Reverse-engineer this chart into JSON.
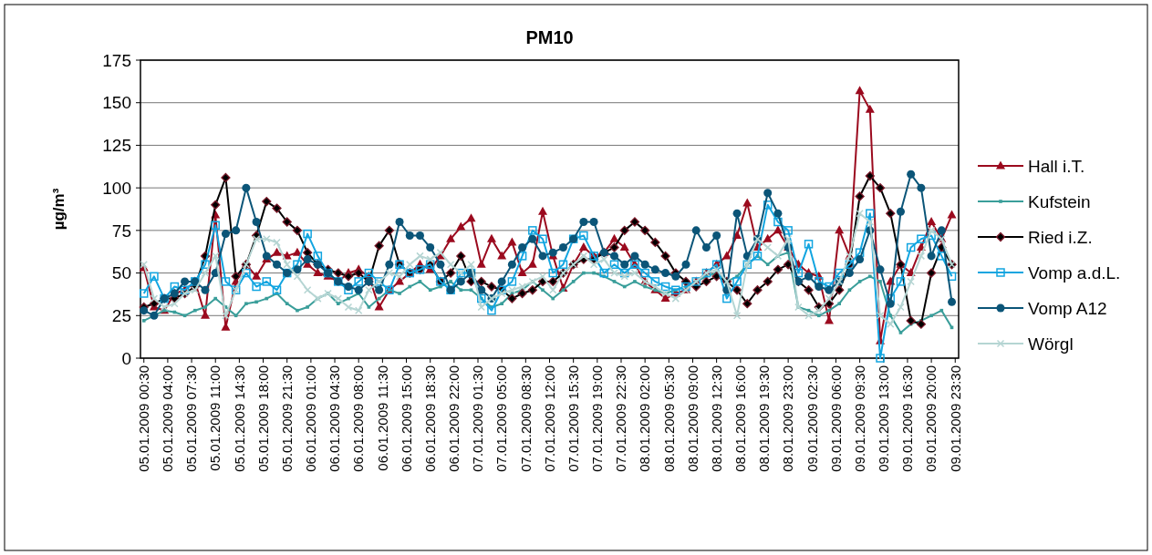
{
  "chart_data": {
    "type": "line",
    "title": "PM10",
    "ylabel": "µg/m³",
    "legend": "right",
    "grid": "y",
    "ylim": [
      0,
      175
    ],
    "yticks": [
      0,
      25,
      50,
      75,
      100,
      125,
      150,
      175
    ],
    "xlim": [
      "2009-01-05T00:00",
      "2009-01-10T00:00"
    ],
    "xticks": [
      {
        "value": "2009-01-05T00:30",
        "label": "05.01.2009 00:30"
      },
      {
        "value": "2009-01-05T04:00",
        "label": "05.01.2009 04:00"
      },
      {
        "value": "2009-01-05T07:30",
        "label": "05.01.2009 07:30"
      },
      {
        "value": "2009-01-05T11:00",
        "label": "05.01.2009 11:00"
      },
      {
        "value": "2009-01-05T14:30",
        "label": "05.01.2009 14:30"
      },
      {
        "value": "2009-01-05T18:00",
        "label": "05.01.2009 18:00"
      },
      {
        "value": "2009-01-05T21:30",
        "label": "05.01.2009 21:30"
      },
      {
        "value": "2009-01-06T01:00",
        "label": "06.01.2009 01:00"
      },
      {
        "value": "2009-01-06T04:30",
        "label": "06.01.2009 04:30"
      },
      {
        "value": "2009-01-06T08:00",
        "label": "06.01.2009 08:00"
      },
      {
        "value": "2009-01-06T11:30",
        "label": "06.01.2009 11:30"
      },
      {
        "value": "2009-01-06T15:00",
        "label": "06.01.2009 15:00"
      },
      {
        "value": "2009-01-06T18:30",
        "label": "06.01.2009 18:30"
      },
      {
        "value": "2009-01-06T22:00",
        "label": "06.01.2009 22:00"
      },
      {
        "value": "2009-01-07T01:30",
        "label": "07.01.2009 01:30"
      },
      {
        "value": "2009-01-07T05:00",
        "label": "07.01.2009 05:00"
      },
      {
        "value": "2009-01-07T08:30",
        "label": "07.01.2009 08:30"
      },
      {
        "value": "2009-01-07T12:00",
        "label": "07.01.2009 12:00"
      },
      {
        "value": "2009-01-07T15:30",
        "label": "07.01.2009 15:30"
      },
      {
        "value": "2009-01-07T19:00",
        "label": "07.01.2009 19:00"
      },
      {
        "value": "2009-01-07T22:30",
        "label": "07.01.2009 22:30"
      },
      {
        "value": "2009-01-08T02:00",
        "label": "08.01.2009 02:00"
      },
      {
        "value": "2009-01-08T05:30",
        "label": "08.01.2009 05:30"
      },
      {
        "value": "2009-01-08T09:00",
        "label": "08.01.2009 09:00"
      },
      {
        "value": "2009-01-08T12:30",
        "label": "08.01.2009 12:30"
      },
      {
        "value": "2009-01-08T16:00",
        "label": "08.01.2009 16:00"
      },
      {
        "value": "2009-01-08T19:30",
        "label": "08.01.2009 19:30"
      },
      {
        "value": "2009-01-08T23:00",
        "label": "08.01.2009 23:00"
      },
      {
        "value": "2009-01-09T02:30",
        "label": "09.01.2009 02:30"
      },
      {
        "value": "2009-01-09T06:00",
        "label": "09.01.2009 06:00"
      },
      {
        "value": "2009-01-09T09:30",
        "label": "09.01.2009 09:30"
      },
      {
        "value": "2009-01-09T13:00",
        "label": "09.01.2009 13:00"
      },
      {
        "value": "2009-01-09T16:30",
        "label": "09.01.2009 16:30"
      },
      {
        "value": "2009-01-09T20:00",
        "label": "09.01.2009 20:00"
      },
      {
        "value": "2009-01-09T23:30",
        "label": "09.01.2009 23:30"
      }
    ],
    "x": [
      "2009-01-05T00:30",
      "2009-01-05T02:00",
      "2009-01-05T03:30",
      "2009-01-05T05:00",
      "2009-01-05T06:30",
      "2009-01-05T08:00",
      "2009-01-05T09:30",
      "2009-01-05T11:00",
      "2009-01-05T12:30",
      "2009-01-05T14:00",
      "2009-01-05T15:30",
      "2009-01-05T17:00",
      "2009-01-05T18:30",
      "2009-01-05T20:00",
      "2009-01-05T21:30",
      "2009-01-05T23:00",
      "2009-01-06T00:30",
      "2009-01-06T02:00",
      "2009-01-06T03:30",
      "2009-01-06T05:00",
      "2009-01-06T06:30",
      "2009-01-06T08:00",
      "2009-01-06T09:30",
      "2009-01-06T11:00",
      "2009-01-06T12:30",
      "2009-01-06T14:00",
      "2009-01-06T15:30",
      "2009-01-06T17:00",
      "2009-01-06T18:30",
      "2009-01-06T20:00",
      "2009-01-06T21:30",
      "2009-01-06T23:00",
      "2009-01-07T00:30",
      "2009-01-07T02:00",
      "2009-01-07T03:30",
      "2009-01-07T05:00",
      "2009-01-07T06:30",
      "2009-01-07T08:00",
      "2009-01-07T09:30",
      "2009-01-07T11:00",
      "2009-01-07T12:30",
      "2009-01-07T14:00",
      "2009-01-07T15:30",
      "2009-01-07T17:00",
      "2009-01-07T18:30",
      "2009-01-07T20:00",
      "2009-01-07T21:30",
      "2009-01-07T23:00",
      "2009-01-08T00:30",
      "2009-01-08T02:00",
      "2009-01-08T03:30",
      "2009-01-08T05:00",
      "2009-01-08T06:30",
      "2009-01-08T08:00",
      "2009-01-08T09:30",
      "2009-01-08T11:00",
      "2009-01-08T12:30",
      "2009-01-08T14:00",
      "2009-01-08T15:30",
      "2009-01-08T17:00",
      "2009-01-08T18:30",
      "2009-01-08T20:00",
      "2009-01-08T21:30",
      "2009-01-08T23:00",
      "2009-01-09T00:30",
      "2009-01-09T02:00",
      "2009-01-09T03:30",
      "2009-01-09T05:00",
      "2009-01-09T06:30",
      "2009-01-09T08:00",
      "2009-01-09T09:30",
      "2009-01-09T11:00",
      "2009-01-09T12:30",
      "2009-01-09T14:00",
      "2009-01-09T15:30",
      "2009-01-09T17:00",
      "2009-01-09T18:30",
      "2009-01-09T20:00",
      "2009-01-09T21:30",
      "2009-01-09T23:00"
    ],
    "series": [
      {
        "name": "Hall i.T.",
        "color": "#9b0a1e",
        "marker": "triangle",
        "values": [
          53,
          30,
          28,
          38,
          40,
          45,
          25,
          84,
          18,
          45,
          55,
          48,
          58,
          62,
          60,
          62,
          55,
          50,
          48,
          45,
          50,
          52,
          48,
          30,
          40,
          45,
          50,
          55,
          52,
          60,
          70,
          77,
          82,
          55,
          70,
          60,
          68,
          50,
          55,
          86,
          60,
          41,
          55,
          65,
          60,
          62,
          70,
          65,
          55,
          45,
          40,
          35,
          38,
          40,
          45,
          50,
          55,
          60,
          72,
          91,
          65,
          70,
          75,
          65,
          55,
          50,
          48,
          22,
          75,
          60,
          157,
          146,
          10,
          45,
          55,
          50,
          65,
          80,
          70,
          84
        ]
      },
      {
        "name": "Kufstein",
        "color": "#3a9e9a",
        "marker": "square",
        "values": [
          22,
          25,
          28,
          27,
          25,
          28,
          30,
          35,
          30,
          25,
          32,
          33,
          35,
          38,
          32,
          28,
          30,
          35,
          38,
          32,
          35,
          38,
          30,
          35,
          40,
          38,
          42,
          45,
          40,
          42,
          45,
          40,
          40,
          35,
          30,
          32,
          38,
          40,
          45,
          40,
          35,
          40,
          45,
          50,
          50,
          48,
          45,
          42,
          45,
          42,
          40,
          38,
          40,
          42,
          45,
          48,
          50,
          45,
          48,
          55,
          60,
          55,
          60,
          62,
          30,
          28,
          25,
          28,
          32,
          40,
          45,
          48,
          45,
          25,
          15,
          20,
          22,
          25,
          28,
          18
        ]
      },
      {
        "name": "Ried i.Z.",
        "color": "#000000",
        "marker": "diamond",
        "values": [
          30,
          32,
          35,
          35,
          38,
          42,
          60,
          90,
          106,
          48,
          55,
          72,
          92,
          88,
          80,
          75,
          62,
          55,
          52,
          50,
          48,
          50,
          45,
          66,
          75,
          55,
          50,
          52,
          55,
          45,
          50,
          60,
          45,
          45,
          42,
          40,
          35,
          38,
          40,
          45,
          45,
          50,
          55,
          58,
          58,
          62,
          65,
          75,
          80,
          75,
          68,
          60,
          50,
          45,
          42,
          45,
          48,
          45,
          40,
          32,
          40,
          45,
          52,
          55,
          45,
          40,
          30,
          32,
          40,
          55,
          95,
          107,
          100,
          85,
          55,
          22,
          20,
          50,
          65,
          55
        ]
      },
      {
        "name": "Vomp a.d.L.",
        "color": "#12a5e0",
        "marker": "square-open",
        "values": [
          38,
          48,
          35,
          42,
          40,
          45,
          55,
          78,
          45,
          40,
          50,
          42,
          45,
          40,
          50,
          55,
          73,
          60,
          50,
          45,
          40,
          45,
          50,
          45,
          40,
          55,
          50,
          52,
          55,
          45,
          40,
          50,
          50,
          35,
          28,
          40,
          45,
          60,
          75,
          70,
          50,
          55,
          70,
          72,
          60,
          50,
          55,
          50,
          55,
          50,
          45,
          42,
          40,
          42,
          45,
          50,
          55,
          35,
          45,
          55,
          60,
          90,
          80,
          75,
          50,
          67,
          45,
          42,
          50,
          55,
          62,
          85,
          0,
          35,
          45,
          65,
          70,
          72,
          60,
          48
        ]
      },
      {
        "name": "Vomp A12",
        "color": "#0b5578",
        "marker": "circle",
        "values": [
          28,
          25,
          35,
          38,
          45,
          45,
          40,
          50,
          73,
          75,
          100,
          80,
          60,
          55,
          50,
          52,
          58,
          55,
          50,
          45,
          42,
          40,
          45,
          40,
          55,
          80,
          72,
          72,
          65,
          55,
          40,
          45,
          50,
          40,
          35,
          45,
          55,
          65,
          70,
          60,
          62,
          65,
          70,
          80,
          80,
          62,
          60,
          55,
          60,
          55,
          52,
          50,
          48,
          55,
          75,
          65,
          72,
          40,
          85,
          60,
          70,
          97,
          85,
          65,
          45,
          48,
          42,
          40,
          45,
          50,
          58,
          75,
          52,
          32,
          86,
          108,
          100,
          60,
          75,
          33
        ]
      },
      {
        "name": "Wörgl",
        "color": "#b5d5d3",
        "marker": "cross",
        "values": [
          55,
          35,
          30,
          32,
          38,
          40,
          50,
          60,
          25,
          40,
          55,
          70,
          70,
          68,
          55,
          48,
          40,
          35,
          38,
          35,
          30,
          28,
          40,
          45,
          50,
          48,
          55,
          60,
          58,
          62,
          55,
          50,
          55,
          30,
          35,
          38,
          40,
          42,
          45,
          48,
          40,
          50,
          55,
          60,
          55,
          58,
          50,
          48,
          50,
          45,
          42,
          38,
          35,
          40,
          45,
          50,
          52,
          45,
          25,
          55,
          70,
          65,
          60,
          70,
          30,
          25,
          28,
          35,
          45,
          60,
          85,
          80,
          25,
          20,
          30,
          45,
          60,
          75,
          70,
          55
        ]
      }
    ]
  }
}
